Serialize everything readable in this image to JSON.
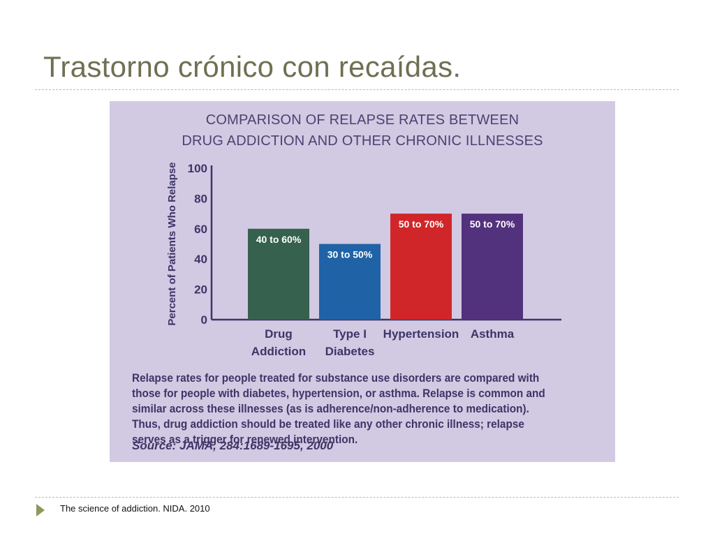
{
  "slide": {
    "title": "Trastorno crónico con recaídas.",
    "footer_note": "The science of addiction. NIDA. 2010"
  },
  "figure": {
    "caption": "Relapse rates for people treated for substance use disorders are compared with those for people with diabetes, hypertension, or asthma. Relapse is common and similar across these illnesses (as is adherence/non-adherence to medication). Thus, drug addiction should be treated like any other chronic illness; relapse serves as a trigger for renewed intervention.",
    "source": "Source: JAMA, 284:1689-1695, 2000"
  },
  "chart_data": {
    "type": "bar",
    "title": "COMPARISON OF RELAPSE RATES BETWEEN",
    "subtitle": "DRUG ADDICTION AND OTHER CHRONIC ILLNESSES",
    "ylabel": "Percent of Patients Who Relapse",
    "xlabel": "",
    "ylim": [
      0,
      100
    ],
    "yticks": [
      0,
      20,
      40,
      60,
      80,
      100
    ],
    "categories": [
      [
        "Drug",
        "Addiction"
      ],
      [
        "Type I",
        "Diabetes"
      ],
      [
        "Hypertension"
      ],
      [
        "Asthma"
      ]
    ],
    "values": [
      60,
      50,
      70,
      70
    ],
    "data_labels": [
      "40 to 60%",
      "30 to 50%",
      "50 to 70%",
      "50 to 70%"
    ],
    "colors": [
      "#36614f",
      "#1f63a6",
      "#d02629",
      "#52317d"
    ],
    "grid": false,
    "legend": "none"
  }
}
